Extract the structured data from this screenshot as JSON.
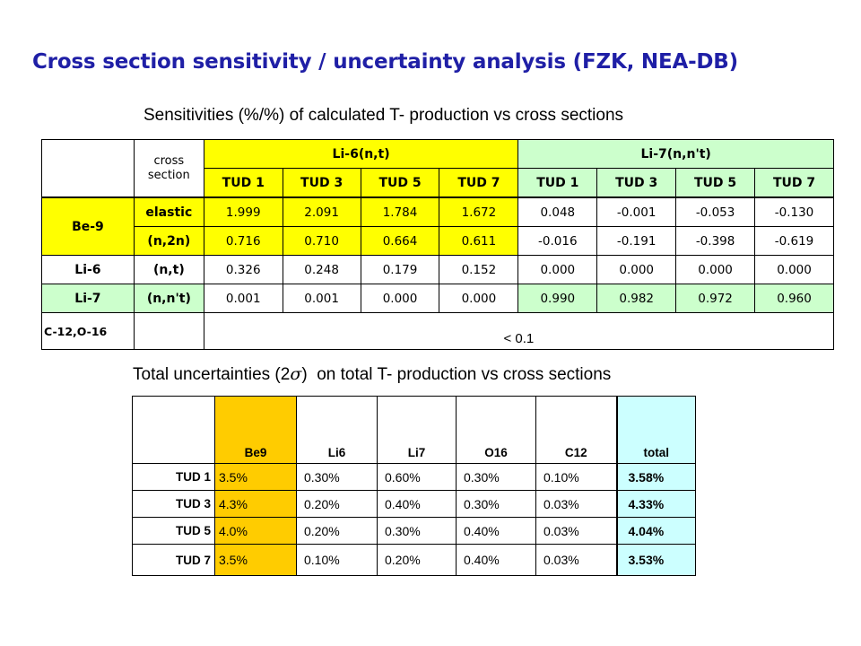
{
  "title": "Cross section sensitivity / uncertainty analysis (FZK, NEA-DB)",
  "sensitivity": {
    "subtitle": "Sensitivities (%/%) of calculated T- production vs cross sections",
    "cross_section_header": [
      "cross",
      "section"
    ],
    "groups": [
      "Li-6(n,t)",
      "Li-7(n,n't)"
    ],
    "columns": [
      "TUD 1",
      "TUD 3",
      "TUD 5",
      "TUD 7",
      "TUD 1",
      "TUD 3",
      "TUD 5",
      "TUD 7"
    ],
    "rows": [
      {
        "nuclide": "Be-9",
        "reaction": "elastic",
        "values": [
          "1.999",
          "2.091",
          "1.784",
          "1.672",
          "0.048",
          "-0.001",
          "-0.053",
          "-0.130"
        ]
      },
      {
        "nuclide": "",
        "reaction": "(n,2n)",
        "values": [
          "0.716",
          "0.710",
          "0.664",
          "0.611",
          "-0.016",
          "-0.191",
          "-0.398",
          "-0.619"
        ]
      },
      {
        "nuclide": "Li-6",
        "reaction": "(n,t)",
        "values": [
          "0.326",
          "0.248",
          "0.179",
          "0.152",
          "0.000",
          "0.000",
          "0.000",
          "0.000"
        ]
      },
      {
        "nuclide": "Li-7",
        "reaction": "(n,n't)",
        "values": [
          "0.001",
          "0.001",
          "0.000",
          "0.000",
          "0.990",
          "0.982",
          "0.972",
          "0.960"
        ]
      }
    ],
    "last_row": {
      "nuclide": "C-12,O-16",
      "value": "< 0.1"
    }
  },
  "uncertainty": {
    "subtitle_prefix": "Total uncertainties (2",
    "subtitle_sigma": "σ",
    "subtitle_suffix": ")  on total T- production vs cross sections",
    "columns": [
      "Be9",
      "Li6",
      "Li7",
      "O16",
      "C12",
      "total"
    ],
    "rows": [
      {
        "label": "TUD 1",
        "values": [
          "3.5%",
          "0.30%",
          "0.60%",
          "0.30%",
          "0.10%",
          "3.58%"
        ]
      },
      {
        "label": "TUD 3",
        "values": [
          "4.3%",
          "0.20%",
          "0.40%",
          "0.30%",
          "0.03%",
          "4.33%"
        ]
      },
      {
        "label": "TUD 5",
        "values": [
          "4.0%",
          "0.20%",
          "0.30%",
          "0.40%",
          "0.03%",
          "4.04%"
        ]
      },
      {
        "label": "TUD 7",
        "values": [
          "3.5%",
          "0.10%",
          "0.20%",
          "0.40%",
          "0.03%",
          "3.53%"
        ]
      }
    ]
  }
}
